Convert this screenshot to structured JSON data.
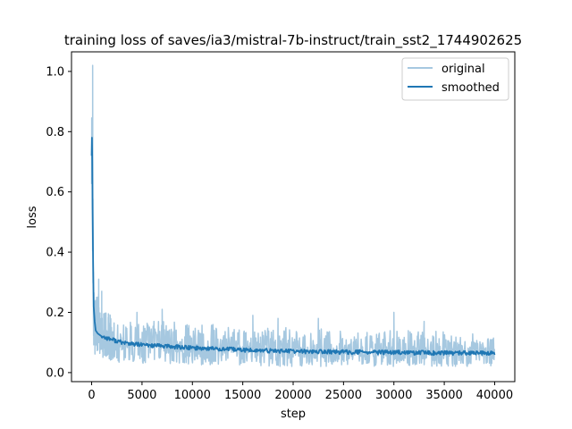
{
  "chart_data": {
    "type": "line",
    "title": "training loss of saves/ia3/mistral-7b-instruct/train_sst2_1744902625",
    "xlabel": "step",
    "ylabel": "loss",
    "xlim": [
      -2000,
      42000
    ],
    "ylim": [
      -0.03,
      1.065
    ],
    "xticks": [
      0,
      5000,
      10000,
      15000,
      20000,
      25000,
      30000,
      35000,
      40000
    ],
    "xtick_labels": [
      "0",
      "5000",
      "10000",
      "15000",
      "20000",
      "25000",
      "30000",
      "35000",
      "40000"
    ],
    "yticks": [
      0.0,
      0.2,
      0.4,
      0.6,
      0.8,
      1.0
    ],
    "ytick_labels": [
      "0.0",
      "0.2",
      "0.4",
      "0.6",
      "0.8",
      "1.0"
    ],
    "grid": false,
    "legend": {
      "position": "upper right",
      "entries": [
        "original",
        "smoothed"
      ]
    },
    "series": [
      {
        "name": "original",
        "color": "#a6c8e0",
        "x": [
          0,
          50,
          100,
          150,
          200,
          300,
          400,
          600,
          800,
          1000,
          1500,
          2000,
          2500,
          3000,
          4000,
          5000,
          6000,
          7000,
          8000,
          9000,
          10000,
          12000,
          14000,
          16000,
          18000,
          20000,
          22000,
          24000,
          26000,
          28000,
          30000,
          32000,
          34000,
          36000,
          38000,
          40000
        ],
        "band_low": [
          0.55,
          0.6,
          0.35,
          0.15,
          0.08,
          0.06,
          0.05,
          0.05,
          0.05,
          0.045,
          0.04,
          0.04,
          0.035,
          0.03,
          0.03,
          0.03,
          0.03,
          0.03,
          0.03,
          0.025,
          0.025,
          0.025,
          0.02,
          0.02,
          0.02,
          0.02,
          0.02,
          0.02,
          0.02,
          0.02,
          0.02,
          0.02,
          0.02,
          0.02,
          0.02,
          0.02
        ],
        "band_high": [
          0.95,
          1.02,
          0.8,
          0.5,
          0.3,
          0.28,
          0.26,
          0.3,
          0.22,
          0.2,
          0.2,
          0.19,
          0.19,
          0.19,
          0.18,
          0.18,
          0.18,
          0.17,
          0.17,
          0.16,
          0.16,
          0.16,
          0.15,
          0.15,
          0.15,
          0.15,
          0.15,
          0.14,
          0.14,
          0.14,
          0.14,
          0.14,
          0.14,
          0.13,
          0.13,
          0.13
        ],
        "band_mid": [
          0.75,
          0.8,
          0.6,
          0.3,
          0.16,
          0.15,
          0.14,
          0.14,
          0.13,
          0.12,
          0.115,
          0.11,
          0.105,
          0.1,
          0.095,
          0.09,
          0.09,
          0.088,
          0.085,
          0.083,
          0.08,
          0.078,
          0.075,
          0.073,
          0.072,
          0.07,
          0.07,
          0.068,
          0.068,
          0.067,
          0.066,
          0.066,
          0.065,
          0.065,
          0.065,
          0.065
        ],
        "spikes": [
          [
            100,
            1.02
          ],
          [
            700,
            0.31
          ],
          [
            1000,
            0.27
          ],
          [
            4500,
            0.2
          ],
          [
            7000,
            0.21
          ],
          [
            16000,
            0.19
          ],
          [
            18500,
            0.18
          ],
          [
            22500,
            0.18
          ],
          [
            30000,
            0.2
          ],
          [
            33000,
            0.17
          ]
        ]
      },
      {
        "name": "smoothed",
        "color": "#1f77b4",
        "x": [
          0,
          30,
          60,
          90,
          150,
          200,
          300,
          400,
          600,
          800,
          1000,
          1500,
          2000,
          2500,
          3000,
          3500,
          4000,
          5000,
          6000,
          7000,
          8000,
          9000,
          10000,
          11000,
          12000,
          13000,
          14000,
          15000,
          16000,
          17000,
          18000,
          19000,
          20000,
          21000,
          22000,
          23000,
          24000,
          25000,
          26000,
          27000,
          28000,
          29000,
          30000,
          31000,
          32000,
          33000,
          34000,
          35000,
          36000,
          37000,
          38000,
          39000,
          40000
        ],
        "y": [
          0.72,
          0.78,
          0.7,
          0.55,
          0.35,
          0.22,
          0.17,
          0.14,
          0.13,
          0.125,
          0.12,
          0.115,
          0.11,
          0.105,
          0.1,
          0.098,
          0.095,
          0.092,
          0.09,
          0.088,
          0.086,
          0.084,
          0.082,
          0.081,
          0.08,
          0.078,
          0.077,
          0.075,
          0.074,
          0.073,
          0.072,
          0.072,
          0.071,
          0.07,
          0.07,
          0.069,
          0.069,
          0.068,
          0.068,
          0.068,
          0.067,
          0.067,
          0.067,
          0.066,
          0.066,
          0.066,
          0.065,
          0.065,
          0.065,
          0.065,
          0.065,
          0.064,
          0.064
        ]
      }
    ]
  }
}
